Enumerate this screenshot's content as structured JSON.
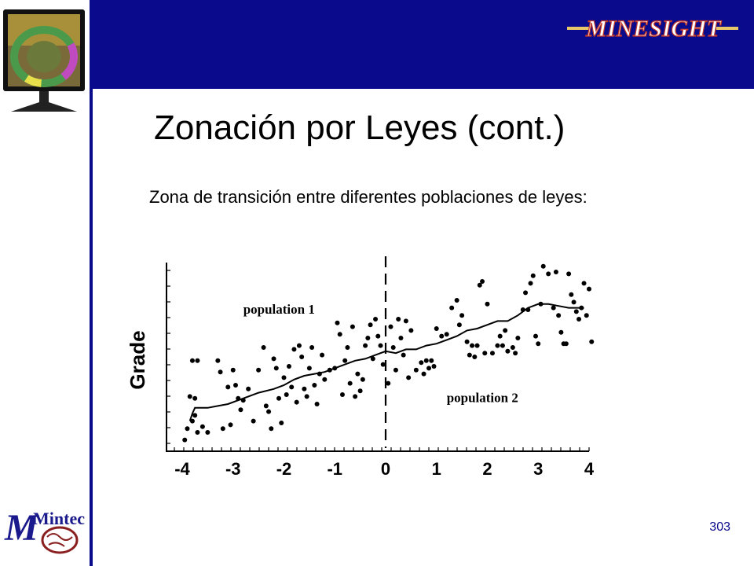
{
  "brand": {
    "logo_text": "MINESIGHT",
    "colors": {
      "header": "#0a0a8c",
      "logo_gold": "#e8c66a",
      "logo_red": "#c0392b"
    }
  },
  "title": "Zonación por Leyes (cont.)",
  "subtitle": "Zona de transición entre diferentes poblaciones de leyes:",
  "footer": {
    "company_logo_text": "Mintec",
    "page_number": "303"
  },
  "chart_data": {
    "type": "scatter",
    "xlabel": "",
    "ylabel": "Grade",
    "xlim": [
      -4,
      4
    ],
    "ylim": [
      0,
      10
    ],
    "xticks": [
      "-4",
      "-3",
      "-2",
      "-1",
      "0",
      "1",
      "2",
      "3",
      "4"
    ],
    "annotations": [
      {
        "text": "population 1",
        "x": -2.8,
        "y": 7.3
      },
      {
        "text": "population 2",
        "x": 1.2,
        "y": 2.6
      }
    ],
    "boundary_x": 0,
    "series": [
      {
        "points": [
          [
            -3.95,
            0.6
          ],
          [
            -3.9,
            1.2
          ],
          [
            -3.85,
            2.9
          ],
          [
            -3.8,
            1.6
          ],
          [
            -3.75,
            2.8
          ],
          [
            -3.7,
            1.0
          ],
          [
            -3.8,
            4.8
          ],
          [
            -3.7,
            4.8
          ],
          [
            -3.75,
            1.9
          ],
          [
            -3.6,
            1.3
          ],
          [
            -3.5,
            1.0
          ],
          [
            -3.3,
            4.8
          ],
          [
            -3.25,
            4.2
          ],
          [
            -3.1,
            3.4
          ],
          [
            -3.05,
            1.4
          ],
          [
            -3.2,
            1.2
          ],
          [
            -3.0,
            4.3
          ],
          [
            -2.95,
            3.5
          ],
          [
            -2.9,
            2.8
          ],
          [
            -2.85,
            2.2
          ],
          [
            -2.8,
            2.7
          ],
          [
            -2.7,
            3.3
          ],
          [
            -2.6,
            1.6
          ],
          [
            -2.5,
            4.3
          ],
          [
            -2.4,
            5.5
          ],
          [
            -2.35,
            2.4
          ],
          [
            -2.3,
            2.1
          ],
          [
            -2.25,
            1.2
          ],
          [
            -2.2,
            4.9
          ],
          [
            -2.15,
            4.4
          ],
          [
            -2.1,
            2.8
          ],
          [
            -2.05,
            1.5
          ],
          [
            -2.0,
            3.9
          ],
          [
            -1.95,
            3.0
          ],
          [
            -1.9,
            4.5
          ],
          [
            -1.85,
            3.4
          ],
          [
            -1.8,
            5.4
          ],
          [
            -1.75,
            2.6
          ],
          [
            -1.7,
            5.6
          ],
          [
            -1.65,
            5.0
          ],
          [
            -1.6,
            3.3
          ],
          [
            -1.55,
            2.9
          ],
          [
            -1.5,
            4.4
          ],
          [
            -1.45,
            5.5
          ],
          [
            -1.4,
            3.5
          ],
          [
            -1.35,
            2.5
          ],
          [
            -1.3,
            4.1
          ],
          [
            -1.25,
            5.1
          ],
          [
            -1.2,
            3.8
          ],
          [
            -1.1,
            4.3
          ],
          [
            -1.0,
            4.4
          ],
          [
            -0.95,
            6.8
          ],
          [
            -0.9,
            6.2
          ],
          [
            -0.85,
            3.0
          ],
          [
            -0.8,
            4.8
          ],
          [
            -0.75,
            5.5
          ],
          [
            -0.7,
            3.6
          ],
          [
            -0.65,
            6.6
          ],
          [
            -0.6,
            2.9
          ],
          [
            -0.55,
            4.1
          ],
          [
            -0.5,
            3.2
          ],
          [
            -0.45,
            3.8
          ],
          [
            -0.4,
            5.6
          ],
          [
            -0.35,
            6.0
          ],
          [
            -0.3,
            6.7
          ],
          [
            -0.25,
            4.9
          ],
          [
            -0.2,
            7.0
          ],
          [
            -0.15,
            6.1
          ],
          [
            -0.1,
            5.6
          ],
          [
            -0.05,
            4.6
          ]
        ]
      },
      {
        "points": [
          [
            0.05,
            3.6
          ],
          [
            0.1,
            6.6
          ],
          [
            0.15,
            5.5
          ],
          [
            0.2,
            4.3
          ],
          [
            0.25,
            7.0
          ],
          [
            0.3,
            6.0
          ],
          [
            0.35,
            5.1
          ],
          [
            0.4,
            6.9
          ],
          [
            0.45,
            3.9
          ],
          [
            0.5,
            6.4
          ],
          [
            0.6,
            4.3
          ],
          [
            0.7,
            4.7
          ],
          [
            0.75,
            4.1
          ],
          [
            0.8,
            4.8
          ],
          [
            0.85,
            4.4
          ],
          [
            0.9,
            4.8
          ],
          [
            0.95,
            4.5
          ],
          [
            1.0,
            6.5
          ],
          [
            1.1,
            6.1
          ],
          [
            1.2,
            6.2
          ],
          [
            1.3,
            7.6
          ],
          [
            1.4,
            8.0
          ],
          [
            1.45,
            6.7
          ],
          [
            1.5,
            7.2
          ],
          [
            1.6,
            5.8
          ],
          [
            1.65,
            5.1
          ],
          [
            1.7,
            5.6
          ],
          [
            1.75,
            5.0
          ],
          [
            1.8,
            5.6
          ],
          [
            1.85,
            8.8
          ],
          [
            1.9,
            9.0
          ],
          [
            1.95,
            5.2
          ],
          [
            2.0,
            7.8
          ],
          [
            2.1,
            5.2
          ],
          [
            2.2,
            5.6
          ],
          [
            2.25,
            6.1
          ],
          [
            2.3,
            5.6
          ],
          [
            2.35,
            6.4
          ],
          [
            2.4,
            5.3
          ],
          [
            2.5,
            5.5
          ],
          [
            2.55,
            5.2
          ],
          [
            2.6,
            6.0
          ],
          [
            2.7,
            7.5
          ],
          [
            2.75,
            8.4
          ],
          [
            2.8,
            7.5
          ],
          [
            2.85,
            8.9
          ],
          [
            2.9,
            9.3
          ],
          [
            2.95,
            6.1
          ],
          [
            3.0,
            5.7
          ],
          [
            3.05,
            7.8
          ],
          [
            3.1,
            9.8
          ],
          [
            3.2,
            9.4
          ],
          [
            3.3,
            7.6
          ],
          [
            3.35,
            9.5
          ],
          [
            3.4,
            7.2
          ],
          [
            3.45,
            6.3
          ],
          [
            3.5,
            5.7
          ],
          [
            3.55,
            5.7
          ],
          [
            3.6,
            9.4
          ],
          [
            3.65,
            8.3
          ],
          [
            3.7,
            7.9
          ],
          [
            3.75,
            7.4
          ],
          [
            3.8,
            7.0
          ],
          [
            3.85,
            7.6
          ],
          [
            3.9,
            8.9
          ],
          [
            3.95,
            7.2
          ],
          [
            4.0,
            8.6
          ],
          [
            4.05,
            5.8
          ]
        ]
      }
    ],
    "trend_line": [
      [
        -3.85,
        1.6
      ],
      [
        -3.8,
        2.0
      ],
      [
        -3.75,
        2.3
      ],
      [
        -3.7,
        2.3
      ],
      [
        -3.5,
        2.3
      ],
      [
        -3.3,
        2.4
      ],
      [
        -3.1,
        2.5
      ],
      [
        -2.9,
        2.7
      ],
      [
        -2.7,
        2.9
      ],
      [
        -2.5,
        3.1
      ],
      [
        -2.2,
        3.3
      ],
      [
        -2.0,
        3.5
      ],
      [
        -1.8,
        3.8
      ],
      [
        -1.6,
        4.0
      ],
      [
        -1.4,
        4.1
      ],
      [
        -1.2,
        4.2
      ],
      [
        -1.0,
        4.4
      ],
      [
        -0.8,
        4.6
      ],
      [
        -0.6,
        4.8
      ],
      [
        -0.4,
        4.9
      ],
      [
        -0.2,
        5.1
      ],
      [
        0.0,
        5.3
      ],
      [
        0.2,
        5.2
      ],
      [
        0.4,
        5.4
      ],
      [
        0.6,
        5.4
      ],
      [
        0.8,
        5.6
      ],
      [
        1.0,
        5.7
      ],
      [
        1.2,
        5.9
      ],
      [
        1.4,
        6.1
      ],
      [
        1.6,
        6.4
      ],
      [
        1.8,
        6.5
      ],
      [
        2.0,
        6.7
      ],
      [
        2.2,
        6.9
      ],
      [
        2.4,
        6.9
      ],
      [
        2.6,
        7.2
      ],
      [
        2.8,
        7.6
      ],
      [
        3.0,
        7.8
      ],
      [
        3.2,
        7.8
      ],
      [
        3.4,
        7.7
      ],
      [
        3.6,
        7.6
      ],
      [
        3.8,
        7.6
      ],
      [
        3.9,
        7.6
      ]
    ]
  }
}
